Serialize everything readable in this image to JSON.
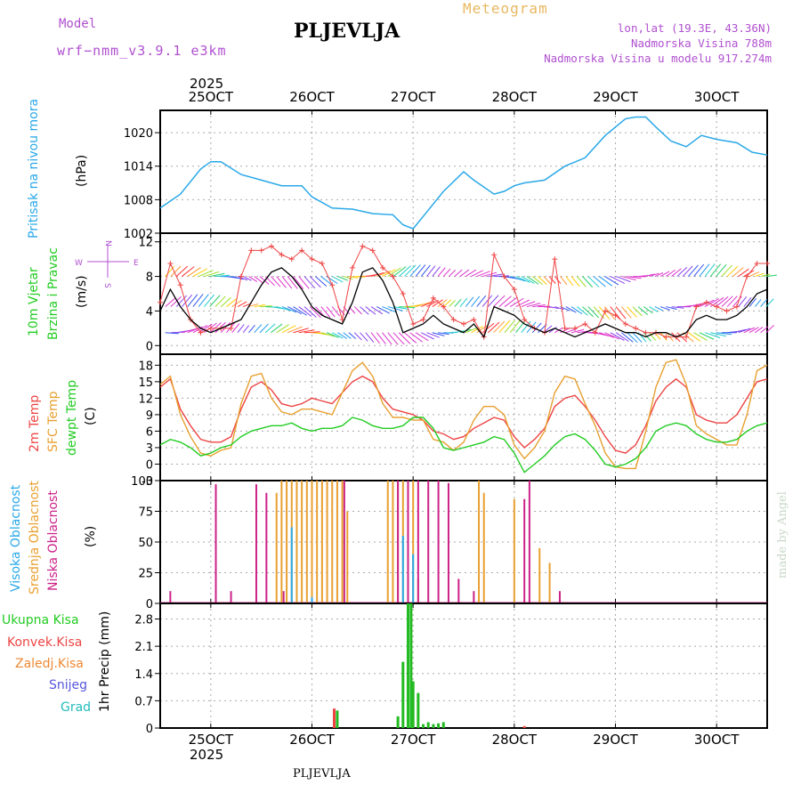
{
  "header": {
    "model_label": "Model",
    "model_name": "wrf−nmm_v3.9.1  e3km",
    "meteogram_title": "Meteogram",
    "station": "PLJEVLJA",
    "lonlat": "lon,lat (19.3E, 43.36N)",
    "elevation": "Nadmorska Visina 788m",
    "model_elevation": "Nadmorska Visina u modelu 917.274m",
    "year": "2025"
  },
  "footer": {
    "station": "PLJEVLJA",
    "year": "2025",
    "watermark": "made by Angel"
  },
  "colors": {
    "pressure": "#29a8e8",
    "wind_green": "#22cc22",
    "wind_speed": "#000000",
    "wind_gust": "#ee4444",
    "temp_2m": "#ee4444",
    "temp_sfc": "#e8a030",
    "dewpoint": "#22cc22",
    "cloud_high": "#29a8e8",
    "cloud_mid": "#e8a030",
    "cloud_low": "#cc2288",
    "precip_total": "#22bb22",
    "precip_conv": "#ee4444",
    "precip_frozen": "#ee8833",
    "precip_snow": "#5555dd",
    "precip_hail": "#22bbbb",
    "purple": "#b050d0"
  },
  "chart_data": [
    {
      "type": "line",
      "panel": "pressure",
      "title": "Pritisak na nivou mora",
      "ylabel": "(hPa)",
      "ylim": [
        1002,
        1024
      ],
      "yticks": [
        1002,
        1008,
        1014,
        1020
      ],
      "xticks": [
        "25OCT",
        "26OCT",
        "27OCT",
        "28OCT",
        "29OCT",
        "30OCT"
      ],
      "x_day_start": 24.5,
      "x_day_end": 30.5,
      "series": [
        {
          "name": "Pritisak",
          "x": [
            24.5,
            24.7,
            24.9,
            25.0,
            25.1,
            25.3,
            25.5,
            25.7,
            25.9,
            26.0,
            26.2,
            26.4,
            26.6,
            26.8,
            26.9,
            27.0,
            27.1,
            27.3,
            27.5,
            27.6,
            27.8,
            27.9,
            28.0,
            28.1,
            28.3,
            28.5,
            28.7,
            28.9,
            29.1,
            29.2,
            29.3,
            29.4,
            29.55,
            29.7,
            29.85,
            30.0,
            30.2,
            30.35,
            30.5
          ],
          "values": [
            1006.5,
            1009,
            1013.5,
            1014.8,
            1014.8,
            1012.5,
            1011.5,
            1010.5,
            1010.5,
            1008.5,
            1006.5,
            1006.3,
            1005.5,
            1005.3,
            1003.5,
            1002.8,
            1005,
            1009.5,
            1013,
            1011.5,
            1009,
            1009.5,
            1010.5,
            1011,
            1011.5,
            1014,
            1015.5,
            1019.5,
            1022.5,
            1022.8,
            1022.8,
            1021,
            1018.5,
            1017.5,
            1019.5,
            1018.8,
            1018.2,
            1016.5,
            1016
          ]
        }
      ]
    },
    {
      "type": "line",
      "panel": "wind",
      "title": "10m Vjetar",
      "subtitle": "Brzina i Pravac",
      "ylabel": "(m/s)",
      "ylim": [
        -1,
        13
      ],
      "yticks": [
        0,
        4,
        8,
        12
      ],
      "compass": [
        "N",
        "S",
        "W",
        "E"
      ],
      "series": [
        {
          "name": "Brzina",
          "x": [
            24.5,
            24.6,
            24.7,
            24.8,
            24.9,
            25.0,
            25.1,
            25.2,
            25.3,
            25.4,
            25.5,
            25.6,
            25.7,
            25.8,
            25.9,
            26.0,
            26.1,
            26.2,
            26.3,
            26.4,
            26.5,
            26.6,
            26.7,
            26.8,
            26.9,
            27.0,
            27.1,
            27.2,
            27.3,
            27.4,
            27.5,
            27.6,
            27.7,
            27.8,
            27.9,
            28.0,
            28.1,
            28.2,
            28.3,
            28.4,
            28.5,
            28.6,
            28.7,
            28.8,
            28.9,
            29.0,
            29.1,
            29.2,
            29.3,
            29.4,
            29.5,
            29.6,
            29.7,
            29.8,
            29.9,
            30.0,
            30.1,
            30.2,
            30.3,
            30.4,
            30.5
          ],
          "values": [
            4,
            6.5,
            4.5,
            3,
            2,
            1.5,
            2,
            2.5,
            3,
            5,
            7,
            8.5,
            9,
            8,
            6.5,
            4.5,
            3.5,
            3,
            2.5,
            5,
            8.5,
            9,
            7.5,
            5,
            1.5,
            2,
            2.5,
            3.5,
            2.5,
            2,
            1.5,
            2.5,
            1,
            4.5,
            4,
            3.5,
            2.5,
            2,
            1.5,
            2,
            1.5,
            1,
            1.5,
            2,
            2.5,
            2,
            1.5,
            1.5,
            1,
            1.5,
            1.5,
            1,
            1.5,
            3,
            3.5,
            3,
            3,
            3.5,
            4.5,
            6,
            6.5
          ]
        },
        {
          "name": "Udari",
          "x": [
            24.5,
            24.6,
            24.7,
            24.8,
            24.9,
            25.0,
            25.1,
            25.2,
            25.3,
            25.4,
            25.5,
            25.6,
            25.7,
            25.8,
            25.9,
            26.0,
            26.1,
            26.2,
            26.3,
            26.4,
            26.5,
            26.6,
            26.7,
            26.8,
            26.9,
            27.0,
            27.1,
            27.2,
            27.3,
            27.4,
            27.5,
            27.6,
            27.7,
            27.8,
            27.9,
            28.0,
            28.1,
            28.2,
            28.3,
            28.4,
            28.5,
            28.6,
            28.7,
            28.8,
            28.9,
            29.0,
            29.1,
            29.2,
            29.3,
            29.4,
            29.5,
            29.6,
            29.7,
            29.8,
            29.9,
            30.0,
            30.1,
            30.2,
            30.3,
            30.4,
            30.5
          ],
          "values": [
            5,
            9.5,
            7,
            3,
            1.5,
            2,
            2,
            2,
            8,
            11,
            11,
            11.5,
            10.5,
            10,
            11,
            10,
            9.5,
            7,
            3,
            9,
            11.5,
            11,
            9,
            8,
            6,
            2.5,
            3,
            5.5,
            4.5,
            3,
            2.5,
            3,
            1,
            10.5,
            8,
            6.5,
            3,
            2,
            1.5,
            10,
            2,
            2,
            2.5,
            1.5,
            4,
            3.5,
            2.5,
            2,
            1.5,
            1.5,
            1,
            1,
            1,
            4.5,
            5,
            4.5,
            4,
            4.5,
            8,
            9.5,
            9.5
          ]
        }
      ]
    },
    {
      "type": "line",
      "panel": "temperature",
      "title": "2m Temp",
      "subtitle": "SFC Temp",
      "subtitle2": "dewpt Temp",
      "ylabel": "(C)",
      "ylim": [
        -3,
        20
      ],
      "yticks": [
        -3,
        0,
        3,
        6,
        9,
        12,
        15,
        18
      ],
      "series": [
        {
          "name": "2m Temp",
          "x": [
            24.5,
            24.6,
            24.7,
            24.8,
            24.9,
            25.0,
            25.1,
            25.2,
            25.3,
            25.4,
            25.5,
            25.6,
            25.7,
            25.8,
            25.9,
            26.0,
            26.1,
            26.2,
            26.3,
            26.4,
            26.5,
            26.6,
            26.7,
            26.8,
            26.9,
            27.0,
            27.1,
            27.2,
            27.3,
            27.4,
            27.5,
            27.6,
            27.7,
            27.8,
            27.9,
            28.0,
            28.1,
            28.2,
            28.3,
            28.4,
            28.5,
            28.6,
            28.7,
            28.8,
            28.9,
            29.0,
            29.1,
            29.2,
            29.3,
            29.4,
            29.5,
            29.6,
            29.7,
            29.8,
            29.9,
            30.0,
            30.1,
            30.2,
            30.3,
            30.4,
            30.5
          ],
          "values": [
            14,
            15.5,
            10,
            7,
            4.5,
            4,
            4,
            5,
            10,
            14,
            15,
            13.5,
            11,
            10.5,
            11,
            12,
            11.5,
            11,
            13,
            15,
            16,
            15,
            12,
            10,
            9.5,
            9,
            8,
            6,
            5.5,
            4.5,
            5,
            6.5,
            7.5,
            8.5,
            8,
            5,
            3,
            4.5,
            6.5,
            10.5,
            12,
            12.5,
            10.5,
            8,
            5,
            2.5,
            2,
            3.5,
            7,
            11.5,
            14,
            15.5,
            14,
            9,
            8,
            7.5,
            7.5,
            9,
            12,
            15,
            15.5
          ]
        },
        {
          "name": "SFC Temp",
          "x": [
            24.5,
            24.6,
            24.7,
            24.8,
            24.9,
            25.0,
            25.1,
            25.2,
            25.3,
            25.4,
            25.5,
            25.6,
            25.7,
            25.8,
            25.9,
            26.0,
            26.1,
            26.2,
            26.3,
            26.4,
            26.5,
            26.6,
            26.7,
            26.8,
            26.9,
            27.0,
            27.1,
            27.2,
            27.3,
            27.4,
            27.5,
            27.6,
            27.7,
            27.8,
            27.9,
            28.0,
            28.1,
            28.2,
            28.3,
            28.4,
            28.5,
            28.6,
            28.7,
            28.8,
            28.9,
            29.0,
            29.1,
            29.2,
            29.3,
            29.4,
            29.5,
            29.6,
            29.7,
            29.8,
            29.9,
            30.0,
            30.1,
            30.2,
            30.3,
            30.4,
            30.5
          ],
          "values": [
            14.5,
            16,
            9,
            5,
            2,
            1.5,
            2.5,
            3,
            11,
            16,
            16.5,
            12,
            9.5,
            9,
            10,
            10,
            9.5,
            9,
            13,
            17,
            18.5,
            16,
            11,
            8.5,
            8.5,
            8,
            8,
            4.5,
            4,
            2.5,
            4,
            8,
            10.5,
            10.5,
            9,
            3.5,
            1,
            3,
            6,
            13,
            16,
            15.5,
            11,
            7,
            2,
            -0.5,
            -0.8,
            -0.8,
            6,
            14,
            18.5,
            19,
            14.5,
            7,
            5.5,
            4.5,
            3.5,
            3.5,
            9,
            17,
            18
          ]
        },
        {
          "name": "dewpt Temp",
          "x": [
            24.5,
            24.6,
            24.7,
            24.8,
            24.9,
            25.0,
            25.1,
            25.2,
            25.3,
            25.4,
            25.5,
            25.6,
            25.7,
            25.8,
            25.9,
            26.0,
            26.1,
            26.2,
            26.3,
            26.4,
            26.5,
            26.6,
            26.7,
            26.8,
            26.9,
            27.0,
            27.1,
            27.2,
            27.3,
            27.4,
            27.5,
            27.6,
            27.7,
            27.8,
            27.9,
            28.0,
            28.1,
            28.2,
            28.3,
            28.4,
            28.5,
            28.6,
            28.7,
            28.8,
            28.9,
            29.0,
            29.1,
            29.2,
            29.3,
            29.4,
            29.5,
            29.6,
            29.7,
            29.8,
            29.9,
            30.0,
            30.1,
            30.2,
            30.3,
            30.4,
            30.5
          ],
          "values": [
            3.5,
            4.5,
            4,
            3,
            1.5,
            2,
            3,
            3.5,
            5,
            6,
            6.5,
            7,
            7,
            7.5,
            6.5,
            6,
            6.5,
            6.5,
            7,
            8.5,
            8,
            7,
            6.5,
            6.5,
            7,
            8.5,
            8.5,
            6.5,
            3,
            2.5,
            3,
            3.5,
            4,
            5,
            4.5,
            2,
            -1.5,
            0,
            1.5,
            3.5,
            5,
            5.5,
            4.5,
            2.5,
            0,
            -0.5,
            0,
            1,
            3,
            6,
            7,
            7.5,
            7,
            5.5,
            4.5,
            4,
            4,
            4.5,
            6,
            7,
            7.5
          ]
        }
      ]
    },
    {
      "type": "bar",
      "panel": "cloud",
      "title": "Visoka Oblacnost",
      "subtitle": "Srednja Oblacnost",
      "subtitle2": "Niska Oblacnost",
      "ylabel": "(%)",
      "ylim": [
        0,
        100
      ],
      "yticks": [
        0,
        25,
        50,
        75,
        100
      ],
      "series": [
        {
          "name": "Visoka",
          "x": [
            25.8,
            26.0,
            26.9,
            27.0
          ],
          "values": [
            62,
            5,
            55,
            40
          ]
        },
        {
          "name": "Srednja",
          "x": [
            25.65,
            25.7,
            25.75,
            25.8,
            25.85,
            25.9,
            25.95,
            26.0,
            26.05,
            26.1,
            26.15,
            26.2,
            26.25,
            26.3,
            26.35,
            26.75,
            26.8,
            26.85,
            26.9,
            26.95,
            27.0,
            27.05,
            27.65,
            27.7,
            28.0,
            28.25,
            28.35
          ],
          "values": [
            90,
            100,
            100,
            100,
            100,
            100,
            100,
            100,
            100,
            100,
            100,
            100,
            100,
            100,
            75,
            100,
            100,
            100,
            100,
            100,
            100,
            20,
            100,
            90,
            85,
            45,
            33
          ]
        },
        {
          "name": "Niska",
          "x": [
            24.6,
            25.05,
            25.2,
            25.45,
            25.55,
            25.72,
            26.32,
            26.85,
            26.95,
            27.05,
            27.15,
            27.25,
            27.35,
            27.45,
            27.6,
            28.1,
            28.15,
            28.45
          ],
          "values": [
            10,
            97,
            10,
            97,
            90,
            10,
            100,
            100,
            100,
            100,
            100,
            100,
            98,
            20,
            10,
            85,
            100,
            10
          ]
        }
      ]
    },
    {
      "type": "bar",
      "panel": "precip",
      "title": "Ukupna Kisa",
      "subtitle": "Konvek.Kisa",
      "subtitle2": "Zaledj.Kisa",
      "subtitle3": "Snijeg",
      "subtitle4": "Grad",
      "ylabel": "1hr Precip (mm)",
      "ylim": [
        0,
        3.2
      ],
      "yticks": [
        0,
        0.7,
        1.4,
        2.1,
        2.8
      ],
      "series": [
        {
          "name": "Ukupna Kisa",
          "x": [
            26.25,
            26.85,
            26.9,
            26.95,
            26.98,
            27.0,
            27.05,
            27.1,
            27.15,
            27.2,
            27.25,
            27.3
          ],
          "values": [
            0.45,
            0.3,
            1.7,
            3.2,
            3.2,
            1.2,
            0.9,
            0.1,
            0.15,
            0.1,
            0.12,
            0.15
          ]
        },
        {
          "name": "Konvek.Kisa",
          "x": [
            26.22,
            28.1
          ],
          "values": [
            0.5,
            0.05
          ]
        }
      ]
    }
  ],
  "panel_labels": {
    "pressure": [
      "Pritisak na nivou mora",
      "(hPa)"
    ],
    "wind": [
      "10m Vjetar",
      "Brzina i Pravac",
      "(m/s)"
    ],
    "temp": [
      "2m Temp",
      "SFC Temp",
      "dewpt Temp",
      "(C)"
    ],
    "cloud": [
      "Visoka Oblacnost",
      "Srednja Oblacnost",
      "Niska Oblacnost",
      "(%)"
    ],
    "precip": [
      "Ukupna Kisa",
      "Konvek.Kisa",
      "Zaledj.Kisa",
      "Snijeg",
      "Grad",
      "1hr Precip (mm)"
    ]
  },
  "compass_text": {
    "n": "N",
    "s": "S",
    "w": "W",
    "e": "E"
  },
  "y_tick_labels": {
    "pressure": [
      "1002",
      "1008",
      "1014",
      "1020"
    ],
    "wind": [
      "0",
      "4",
      "8",
      "12"
    ],
    "temp": [
      "-3",
      "0",
      "3",
      "6",
      "9",
      "12",
      "15",
      "18"
    ],
    "cloud": [
      "0",
      "25",
      "50",
      "75",
      "100"
    ],
    "precip": [
      "0",
      "0.7",
      "1.4",
      "2.1",
      "2.8"
    ]
  },
  "x_tick_labels": [
    "25OCT",
    "26OCT",
    "27OCT",
    "28OCT",
    "29OCT",
    "30OCT"
  ]
}
